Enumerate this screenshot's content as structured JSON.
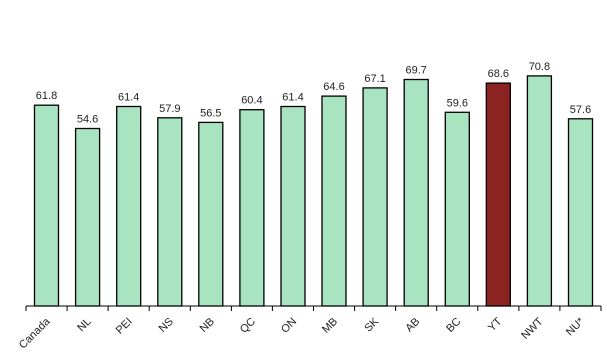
{
  "chart_data": {
    "type": "bar",
    "title": "",
    "xlabel": "",
    "ylabel": "",
    "categories": [
      "Canada",
      "NL",
      "PEI",
      "NS",
      "NB",
      "QC",
      "ON",
      "MB",
      "SK",
      "AB",
      "BC",
      "YT",
      "NWT",
      "NU*"
    ],
    "values": [
      61.8,
      54.6,
      61.4,
      57.9,
      56.5,
      60.4,
      61.4,
      64.6,
      67.1,
      69.7,
      59.6,
      68.6,
      70.8,
      57.6
    ],
    "highlight_category": "YT",
    "ylim": [
      0,
      77
    ],
    "grid": false,
    "legend": "none"
  },
  "colors": {
    "bar": "#a8e4c0",
    "highlight": "#8b2323",
    "stroke": "#000000"
  }
}
